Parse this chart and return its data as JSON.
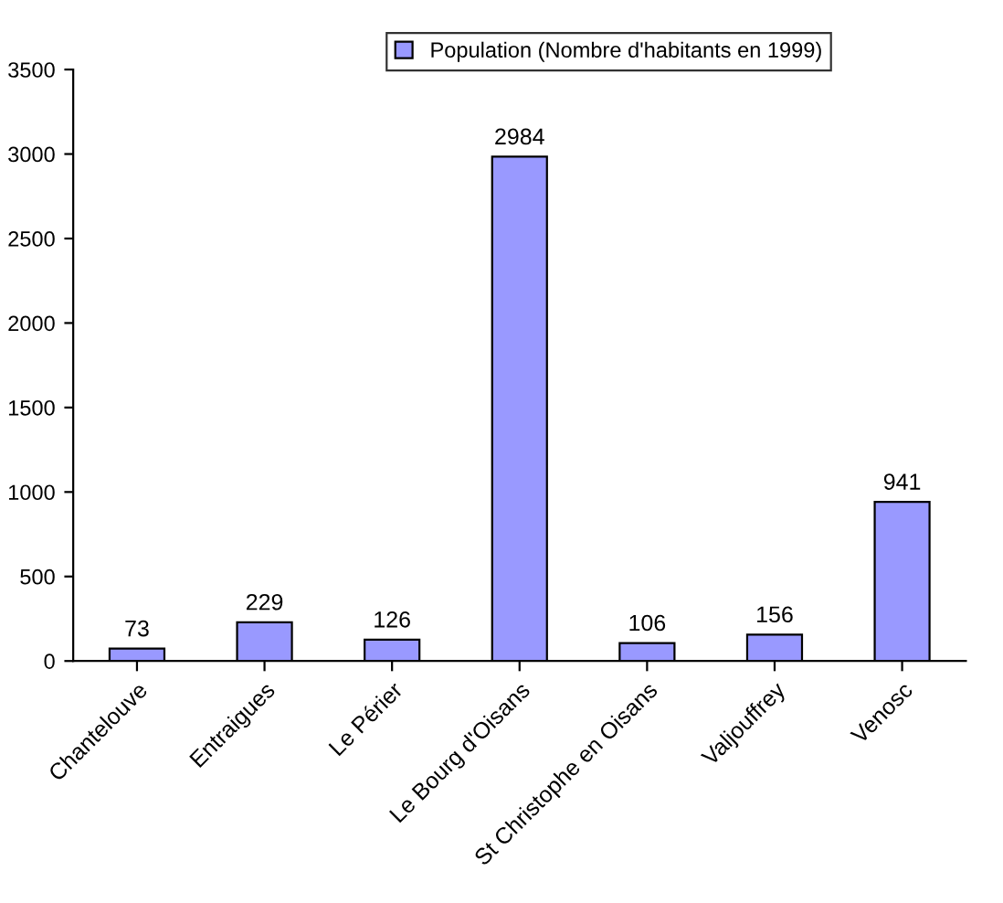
{
  "chart_data": {
    "type": "bar",
    "categories": [
      "Chantelouve",
      "Entraigues",
      "Le Périer",
      "Le Bourg d'Oisans",
      "St Christophe en Oisans",
      "Valjouffrey",
      "Venosc"
    ],
    "series": [
      {
        "name": "Population (Nombre d'habitants en 1999)",
        "color": "#9999ff",
        "values": [
          73,
          229,
          126,
          2984,
          106,
          156,
          941
        ]
      }
    ],
    "ylim": [
      0,
      3500
    ],
    "yticks": [
      0,
      500,
      1000,
      1500,
      2000,
      2500,
      3000,
      3500
    ],
    "grid": false,
    "legend": "top",
    "data_labels": true
  }
}
